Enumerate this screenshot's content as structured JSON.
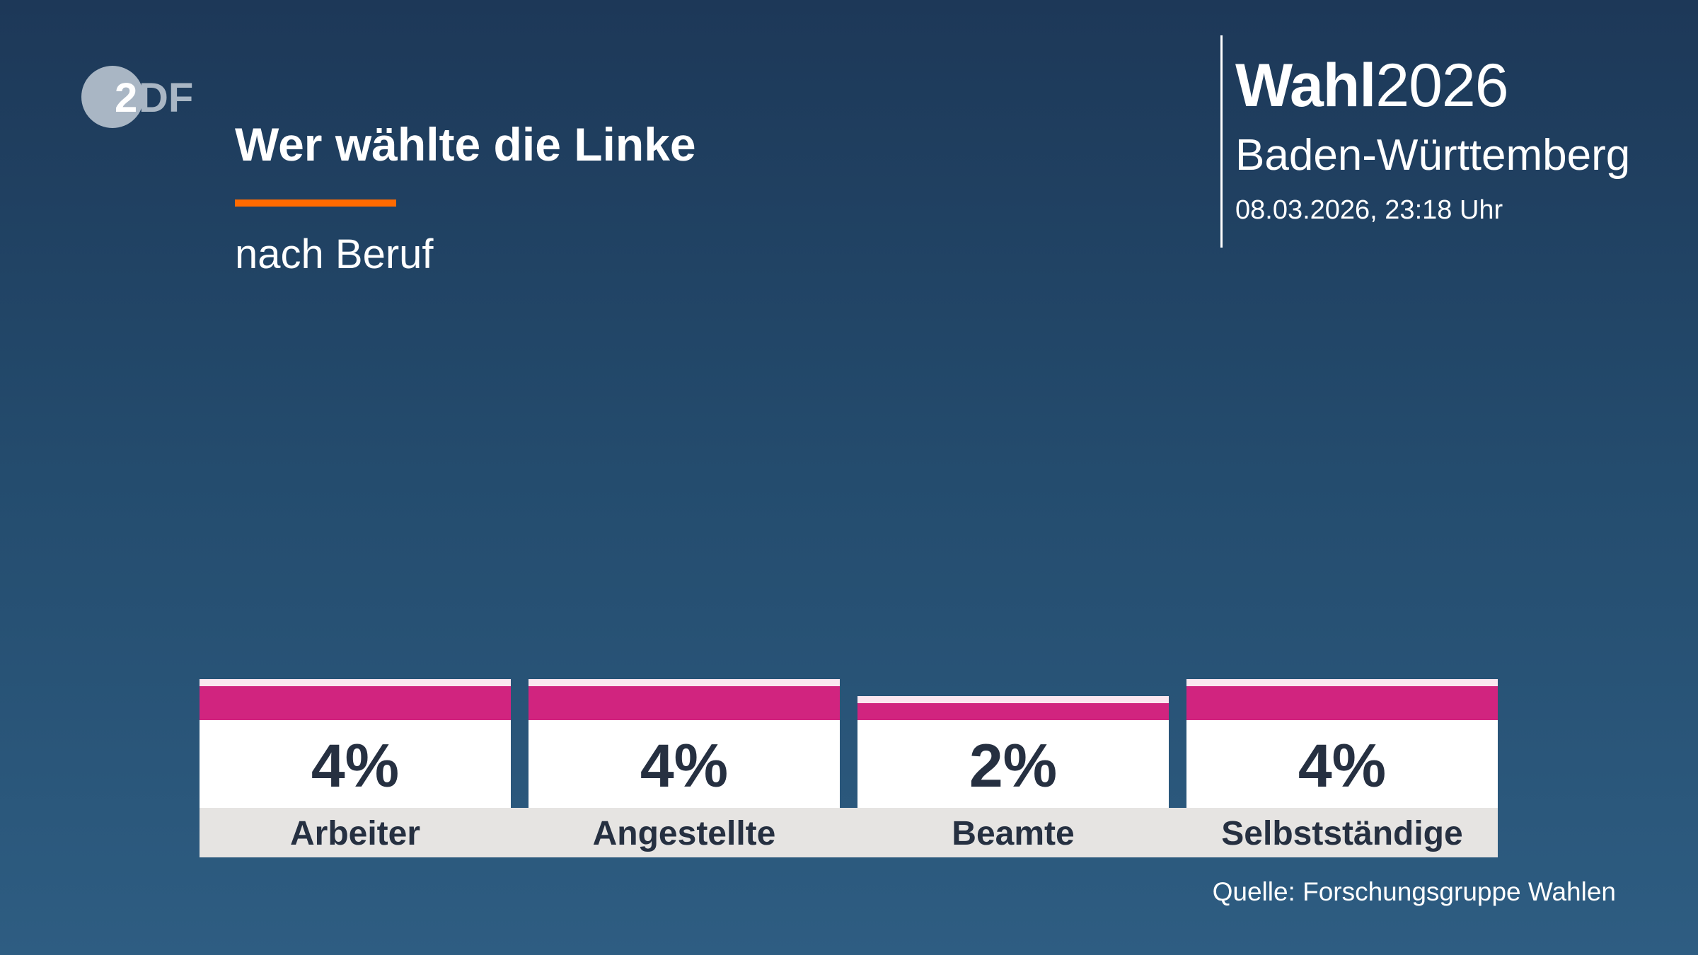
{
  "logo": {
    "text": "ZDF"
  },
  "header": {
    "title": "Wer wählte die Linke",
    "subtitle": "nach Beruf",
    "brand_bold": "Wahl",
    "brand_year": "2026",
    "region": "Baden-Württemberg",
    "date": "08.03.2026, 23:18 Uhr"
  },
  "source": "Quelle: Forschungsgruppe Wahlen",
  "colors": {
    "bar": "#d1247f",
    "accent": "#ff6a00",
    "background": "#244c6e"
  },
  "chart_data": {
    "type": "bar",
    "title": "Wer wählte die Linke",
    "subtitle": "nach Beruf",
    "categories": [
      "Arbeiter",
      "Angestellte",
      "Beamte",
      "Selbstständige"
    ],
    "values": [
      4,
      4,
      2,
      4
    ],
    "value_labels": [
      "4%",
      "4%",
      "2%",
      "4%"
    ],
    "unit": "%",
    "grid": false
  }
}
